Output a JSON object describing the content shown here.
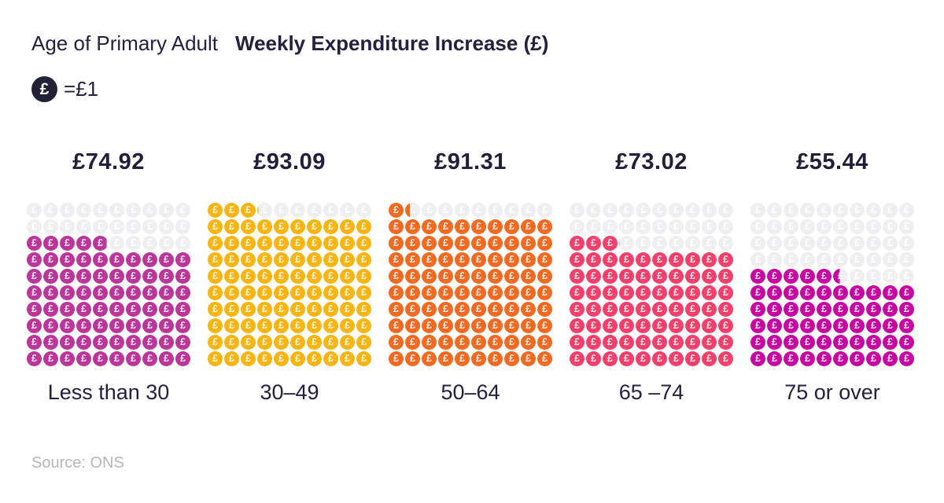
{
  "header": {
    "category_title": "Age of Primary Adult",
    "chart_title": "Weekly Expenditure Increase (£)"
  },
  "legend": {
    "coin_symbol": "£",
    "label": "=£1"
  },
  "source": "Source: ONS",
  "colors": {
    "text": "#232040",
    "muted_text": "#b9b5bd",
    "legend_coin": "#232136",
    "coin_empty": "#efeef0",
    "coin_glyph": "#ffffff"
  },
  "chart_data": {
    "type": "pictogram",
    "title": "Weekly Expenditure Increase (£)",
    "xlabel": "Age of Primary Adult",
    "unit_per_icon": 1,
    "icon": "pound-coin",
    "grid": {
      "columns": 10,
      "rows": 10,
      "max_value": 100,
      "fill_origin": "bottom-left",
      "fill_direction": "left-to-right, bottom-up"
    },
    "categories": [
      "Less than 30",
      "30–49",
      "50–64",
      "65 –74",
      "75 or over"
    ],
    "values": [
      74.92,
      93.09,
      91.31,
      73.02,
      55.44
    ],
    "value_labels": [
      "£74.92",
      "£93.09",
      "£91.31",
      "£73.02",
      "£55.44"
    ],
    "series_colors": [
      "#bc3599",
      "#f8b411",
      "#f26a21",
      "#f43f6b",
      "#c707a2"
    ],
    "coin_symbol": "£",
    "source": "ONS"
  }
}
